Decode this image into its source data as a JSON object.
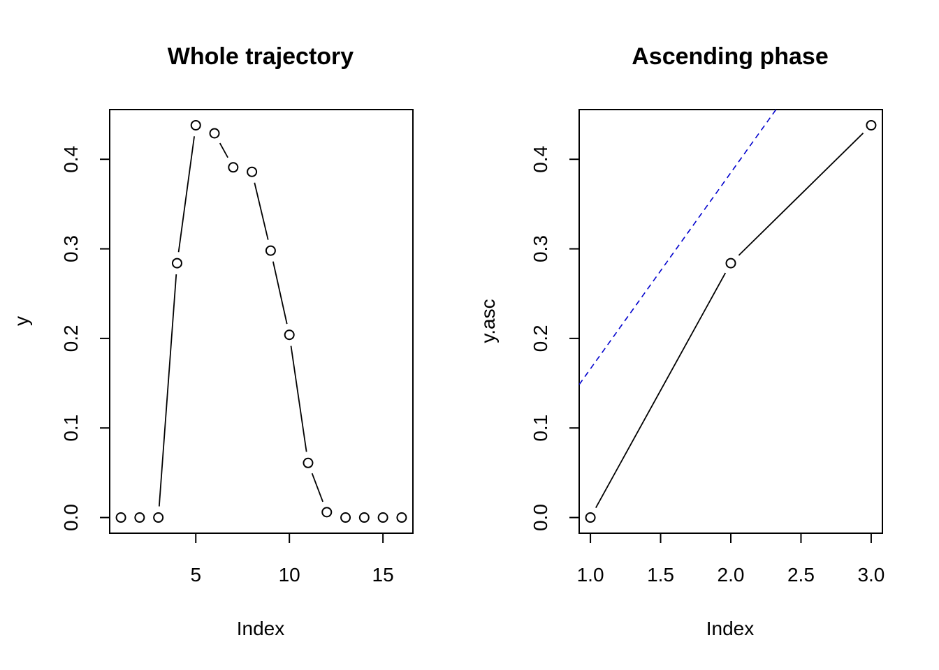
{
  "chart_data": [
    {
      "type": "line",
      "title": "Whole trajectory",
      "xlabel": "Index",
      "ylabel": "y",
      "x": [
        1,
        2,
        3,
        4,
        5,
        6,
        7,
        8,
        9,
        10,
        11,
        12,
        13,
        14,
        15,
        16
      ],
      "series": [
        {
          "values": [
            0.0,
            0.0,
            0.0,
            0.284,
            0.438,
            0.429,
            0.391,
            0.386,
            0.298,
            0.204,
            0.061,
            0.006,
            0.0,
            0.0,
            0.0,
            0.0
          ],
          "style": "points-and-lines",
          "marker": "open-circle",
          "color": "#000000"
        }
      ],
      "xlim": [
        0.4,
        16.6
      ],
      "ylim": [
        -0.0175,
        0.4555
      ],
      "xticks": [
        5,
        10,
        15
      ],
      "xtick_labels": [
        "5",
        "10",
        "15"
      ],
      "yticks": [
        0.0,
        0.1,
        0.2,
        0.3,
        0.4
      ],
      "ytick_labels": [
        "0.0",
        "0.1",
        "0.2",
        "0.3",
        "0.4"
      ],
      "grid": false
    },
    {
      "type": "line",
      "title": "Ascending phase",
      "xlabel": "Index",
      "ylabel": "y.asc",
      "x": [
        1,
        2,
        3
      ],
      "series": [
        {
          "values": [
            0.0,
            0.284,
            0.438
          ],
          "style": "points-and-lines",
          "marker": "open-circle",
          "color": "#000000"
        }
      ],
      "reference_line": {
        "intercept": -0.053,
        "slope": 0.219,
        "style": "dashed",
        "color": "#0000CD"
      },
      "xlim": [
        0.92,
        3.08
      ],
      "ylim": [
        -0.0175,
        0.4555
      ],
      "xticks": [
        1.0,
        1.5,
        2.0,
        2.5,
        3.0
      ],
      "xtick_labels": [
        "1.0",
        "1.5",
        "2.0",
        "2.5",
        "3.0"
      ],
      "yticks": [
        0.0,
        0.1,
        0.2,
        0.3,
        0.4
      ],
      "ytick_labels": [
        "0.0",
        "0.1",
        "0.2",
        "0.3",
        "0.4"
      ],
      "grid": false
    }
  ]
}
